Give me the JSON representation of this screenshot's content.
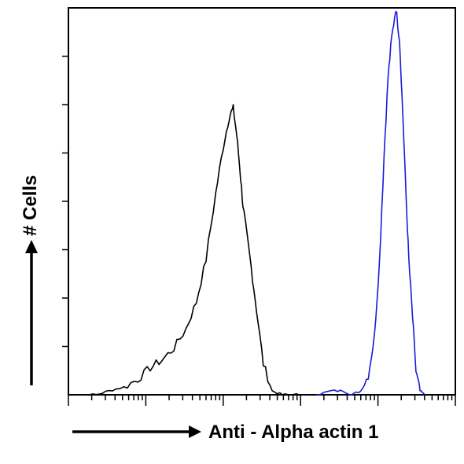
{
  "chart_data": {
    "type": "line",
    "title": "",
    "xlabel": "Anti - Alpha actin 1",
    "ylabel": "# Cells",
    "x_scale": "log",
    "xlim": [
      1,
      100000
    ],
    "ylim": [
      0,
      100
    ],
    "grid": false,
    "legend": "none",
    "series": [
      {
        "color": "#000000",
        "x": [
          1,
          1.5,
          2.3,
          3.3,
          5.2,
          7.9,
          11.4,
          16.2,
          23,
          33,
          45,
          60,
          80,
          100,
          120,
          135,
          150,
          165,
          180,
          200,
          230,
          270,
          330,
          430,
          580,
          800,
          1000
        ],
        "values": [
          0,
          0,
          0,
          1,
          2,
          4,
          7,
          9,
          12,
          17,
          24,
          35,
          52,
          64,
          72,
          74,
          67,
          58,
          49,
          42,
          33,
          22,
          8,
          1,
          0,
          0,
          0
        ]
      },
      {
        "color": "#1a1adb",
        "x": [
          1600,
          2500,
          3600,
          4600,
          6000,
          7500,
          9000,
          10500,
          12000,
          13500,
          15000,
          17000,
          19000,
          21000,
          23000,
          25000,
          28000,
          31000,
          35000,
          40000
        ],
        "values": [
          0,
          1,
          1,
          0,
          1,
          5,
          15,
          35,
          62,
          82,
          92,
          100,
          92,
          72,
          52,
          35,
          20,
          6,
          1,
          0
        ]
      }
    ]
  }
}
